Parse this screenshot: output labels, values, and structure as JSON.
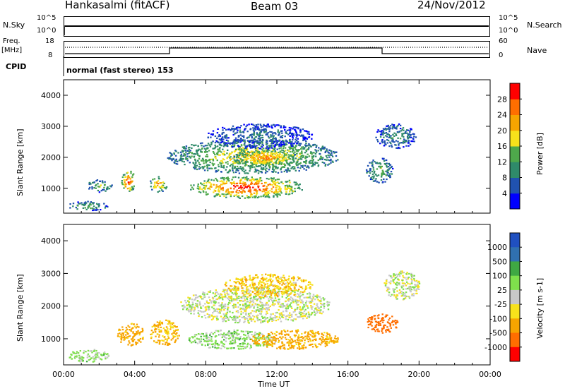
{
  "header": {
    "station": "Hankasalmi (fitACF)",
    "beam": "Beam 03",
    "date": "24/Nov/2012"
  },
  "strip_nsky": {
    "left_label": "N.Sky",
    "right_label": "N.Search",
    "left_ticks": [
      "10^5",
      "10^0"
    ],
    "right_ticks": [
      "10^5",
      "10^0"
    ]
  },
  "strip_freq": {
    "left_label_1": "Freq.",
    "left_label_2": "[MHz]",
    "right_label": "Nave",
    "left_ticks": [
      "18",
      "8"
    ],
    "right_ticks": [
      "60",
      "0"
    ]
  },
  "cpid": {
    "label": "CPID",
    "mode": "normal (fast stereo) 153"
  },
  "colors": {
    "power": [
      "#0000ff",
      "#2052b0",
      "#2f8a6a",
      "#4ea84b",
      "#f7e21b",
      "#f7a400",
      "#ff6e00",
      "#ff0000"
    ],
    "velocity": [
      "#ff0000",
      "#ff6e00",
      "#f7a400",
      "#f7e21b",
      "#c8c8c8",
      "#7fe04c",
      "#3fa843",
      "#3070b0",
      "#2050c0"
    ]
  },
  "chart_data": [
    {
      "type": "heatmap",
      "panel": "power",
      "ylabel": "Slant Range [km]",
      "xlabel": "Time UT",
      "x_ticks": [
        "00:00",
        "04:00",
        "08:00",
        "12:00",
        "16:00",
        "20:00",
        "00:00"
      ],
      "y_ticks": [
        "1000",
        "2000",
        "3000",
        "4000"
      ],
      "ylim": [
        200,
        4500
      ],
      "xlim_hours": [
        0,
        24
      ],
      "colorbar_label": "Power [dB]",
      "colorbar_ticks": [
        "4",
        "8",
        "12",
        "16",
        "20",
        "24",
        "28"
      ],
      "colorbar_range": [
        0,
        32
      ],
      "regions": [
        {
          "t": [
            0.2,
            2.5
          ],
          "r": [
            300,
            600
          ],
          "value": 12
        },
        {
          "t": [
            1.3,
            2.7
          ],
          "r": [
            900,
            1300
          ],
          "value": 14
        },
        {
          "t": [
            3.2,
            4.0
          ],
          "r": [
            900,
            1600
          ],
          "value": 26
        },
        {
          "t": [
            4.8,
            5.8
          ],
          "r": [
            900,
            1400
          ],
          "value": 22
        },
        {
          "t": [
            5.8,
            15.5
          ],
          "r": [
            1500,
            2600
          ],
          "value": 18
        },
        {
          "t": [
            7.0,
            13.5
          ],
          "r": [
            700,
            1400
          ],
          "value": 27
        },
        {
          "t": [
            9.5,
            13.2
          ],
          "r": [
            1700,
            2300
          ],
          "value": 22
        },
        {
          "t": [
            8.0,
            14.0
          ],
          "r": [
            2300,
            3100
          ],
          "value": 8
        },
        {
          "t": [
            17.0,
            18.5
          ],
          "r": [
            1200,
            2000
          ],
          "value": 14
        },
        {
          "t": [
            17.5,
            19.8
          ],
          "r": [
            2300,
            3100
          ],
          "value": 10
        }
      ]
    },
    {
      "type": "heatmap",
      "panel": "velocity",
      "ylabel": "Slant Range [km]",
      "xlabel": "Time UT",
      "x_ticks": [
        "00:00",
        "04:00",
        "08:00",
        "12:00",
        "16:00",
        "20:00",
        "00:00"
      ],
      "y_ticks": [
        "1000",
        "2000",
        "3000",
        "4000"
      ],
      "ylim": [
        200,
        4500
      ],
      "xlim_hours": [
        0,
        24
      ],
      "colorbar_label": "Velocity [m s-1]",
      "colorbar_ticks": [
        "1000",
        "500",
        "100",
        "25",
        "-25",
        "-100",
        "-500",
        "-1000"
      ],
      "regions": [
        {
          "t": [
            0.2,
            2.5
          ],
          "r": [
            300,
            700
          ],
          "value": 50
        },
        {
          "t": [
            3.0,
            4.5
          ],
          "r": [
            800,
            1500
          ],
          "value": -150
        },
        {
          "t": [
            4.8,
            6.5
          ],
          "r": [
            800,
            1600
          ],
          "value": -120
        },
        {
          "t": [
            7.0,
            12.0
          ],
          "r": [
            700,
            1300
          ],
          "value": 60
        },
        {
          "t": [
            10.5,
            15.5
          ],
          "r": [
            700,
            1300
          ],
          "value": -140
        },
        {
          "t": [
            6.5,
            15.0
          ],
          "r": [
            1500,
            2600
          ],
          "value": 0
        },
        {
          "t": [
            9.0,
            14.0
          ],
          "r": [
            2300,
            3000
          ],
          "value": -80
        },
        {
          "t": [
            17.0,
            18.8
          ],
          "r": [
            1200,
            1800
          ],
          "value": -600
        },
        {
          "t": [
            18.0,
            20.0
          ],
          "r": [
            2200,
            3100
          ],
          "value": 0
        }
      ]
    }
  ]
}
